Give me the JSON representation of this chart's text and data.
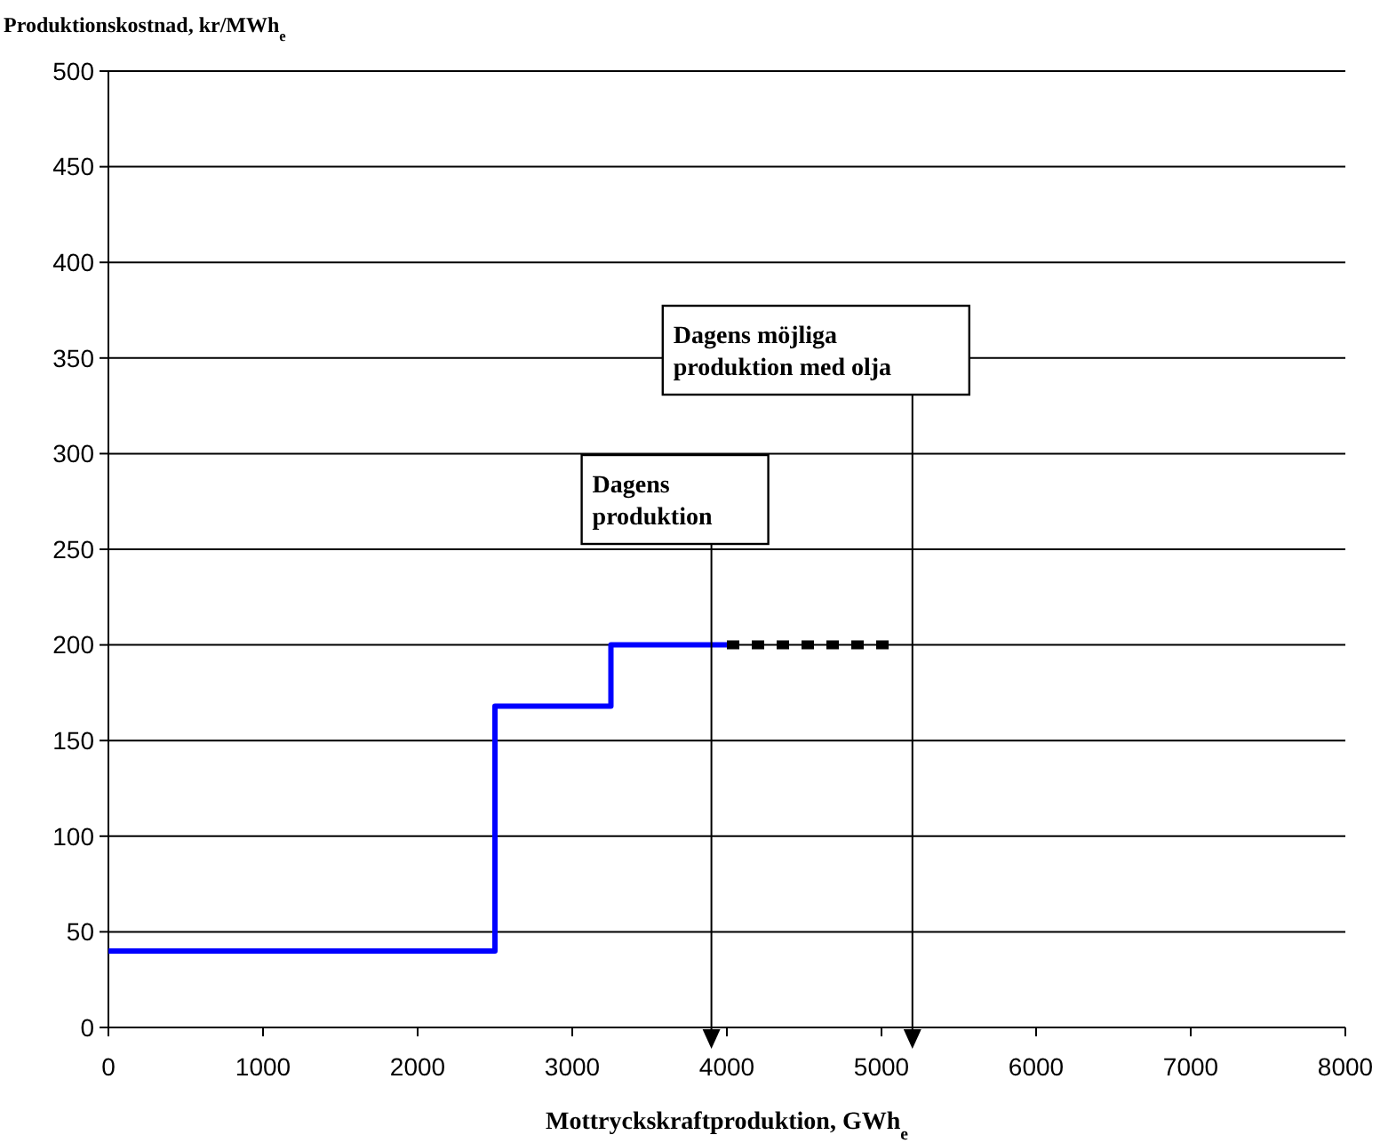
{
  "chart_data": {
    "type": "step",
    "ylabel": "Produktionskostnad, kr/MWh$_{e}$",
    "xlabel": "Mottryckskraftproduktion, GWh$_{e}$",
    "xlim": [
      0,
      8000
    ],
    "xticks": [
      0,
      1000,
      2000,
      3000,
      4000,
      5000,
      6000,
      7000,
      8000
    ],
    "ylim": [
      0,
      500
    ],
    "yticks": [
      0,
      50,
      100,
      150,
      200,
      250,
      300,
      350,
      400,
      450,
      500
    ],
    "grid": "y",
    "series": [
      {
        "color": "#0000ff",
        "x": [
          0,
          2500,
          3250,
          4000
        ],
        "values": [
          40,
          168,
          200,
          200
        ]
      },
      {
        "color": "#000000",
        "line_style": "dotted",
        "x": [
          4000,
          5100
        ],
        "values": [
          200,
          200
        ]
      }
    ],
    "ref_lines": [
      {
        "axis": "x",
        "value": 3900,
        "label": "Dagens\nproduktion",
        "color": "#000000"
      },
      {
        "axis": "x",
        "value": 5200,
        "label": "Dagens möjliga\nproduktion med olja",
        "color": "#000000"
      }
    ]
  }
}
